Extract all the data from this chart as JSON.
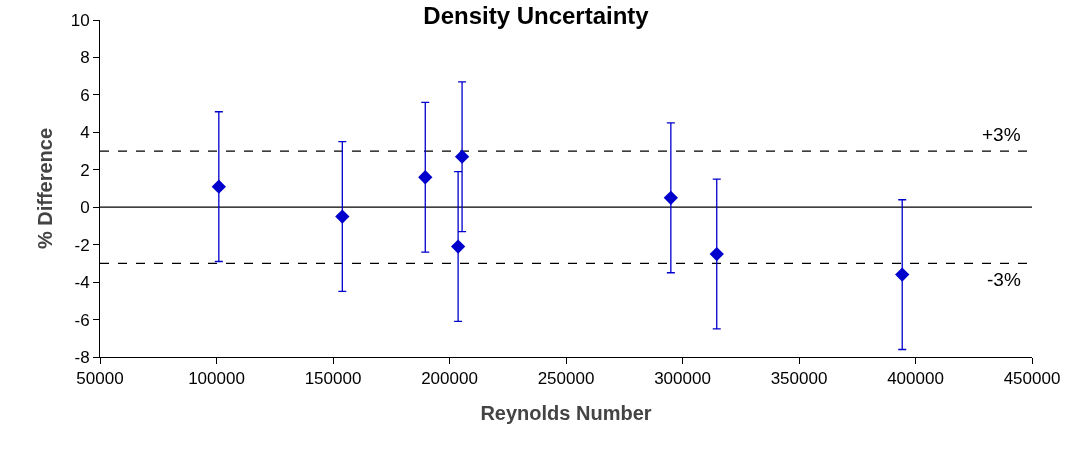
{
  "chart_data": {
    "type": "scatter",
    "title": "Density Uncertainty",
    "xlabel": "Reynolds Number",
    "ylabel": "% Difference",
    "x": [
      101000,
      154000,
      189600,
      203700,
      205400,
      295000,
      314700,
      394300
    ],
    "values": [
      1.1,
      -0.5,
      1.6,
      -2.1,
      2.7,
      0.5,
      -2.5,
      -3.6
    ],
    "errors": [
      4,
      4,
      4,
      4,
      4,
      4,
      4,
      4
    ],
    "color": "#0000cc",
    "marker": "diamond",
    "grid": false,
    "legend": false,
    "xlim": [
      50000,
      450000
    ],
    "xticks": [
      50000,
      100000,
      150000,
      200000,
      250000,
      300000,
      350000,
      400000,
      450000
    ],
    "ylim": [
      -8,
      10
    ],
    "yticks": [
      -8,
      -6,
      -4,
      -2,
      0,
      2,
      4,
      6,
      8,
      10
    ],
    "ref_lines": [
      {
        "axis": "y",
        "value": 3,
        "label": "+3%",
        "line_style": "dashed",
        "color": "#000000"
      },
      {
        "axis": "y",
        "value": -3,
        "label": "-3%",
        "line_style": "dashed",
        "color": "#000000"
      },
      {
        "axis": "y",
        "value": 0,
        "line_style": "solid",
        "color": "#000000"
      }
    ]
  }
}
